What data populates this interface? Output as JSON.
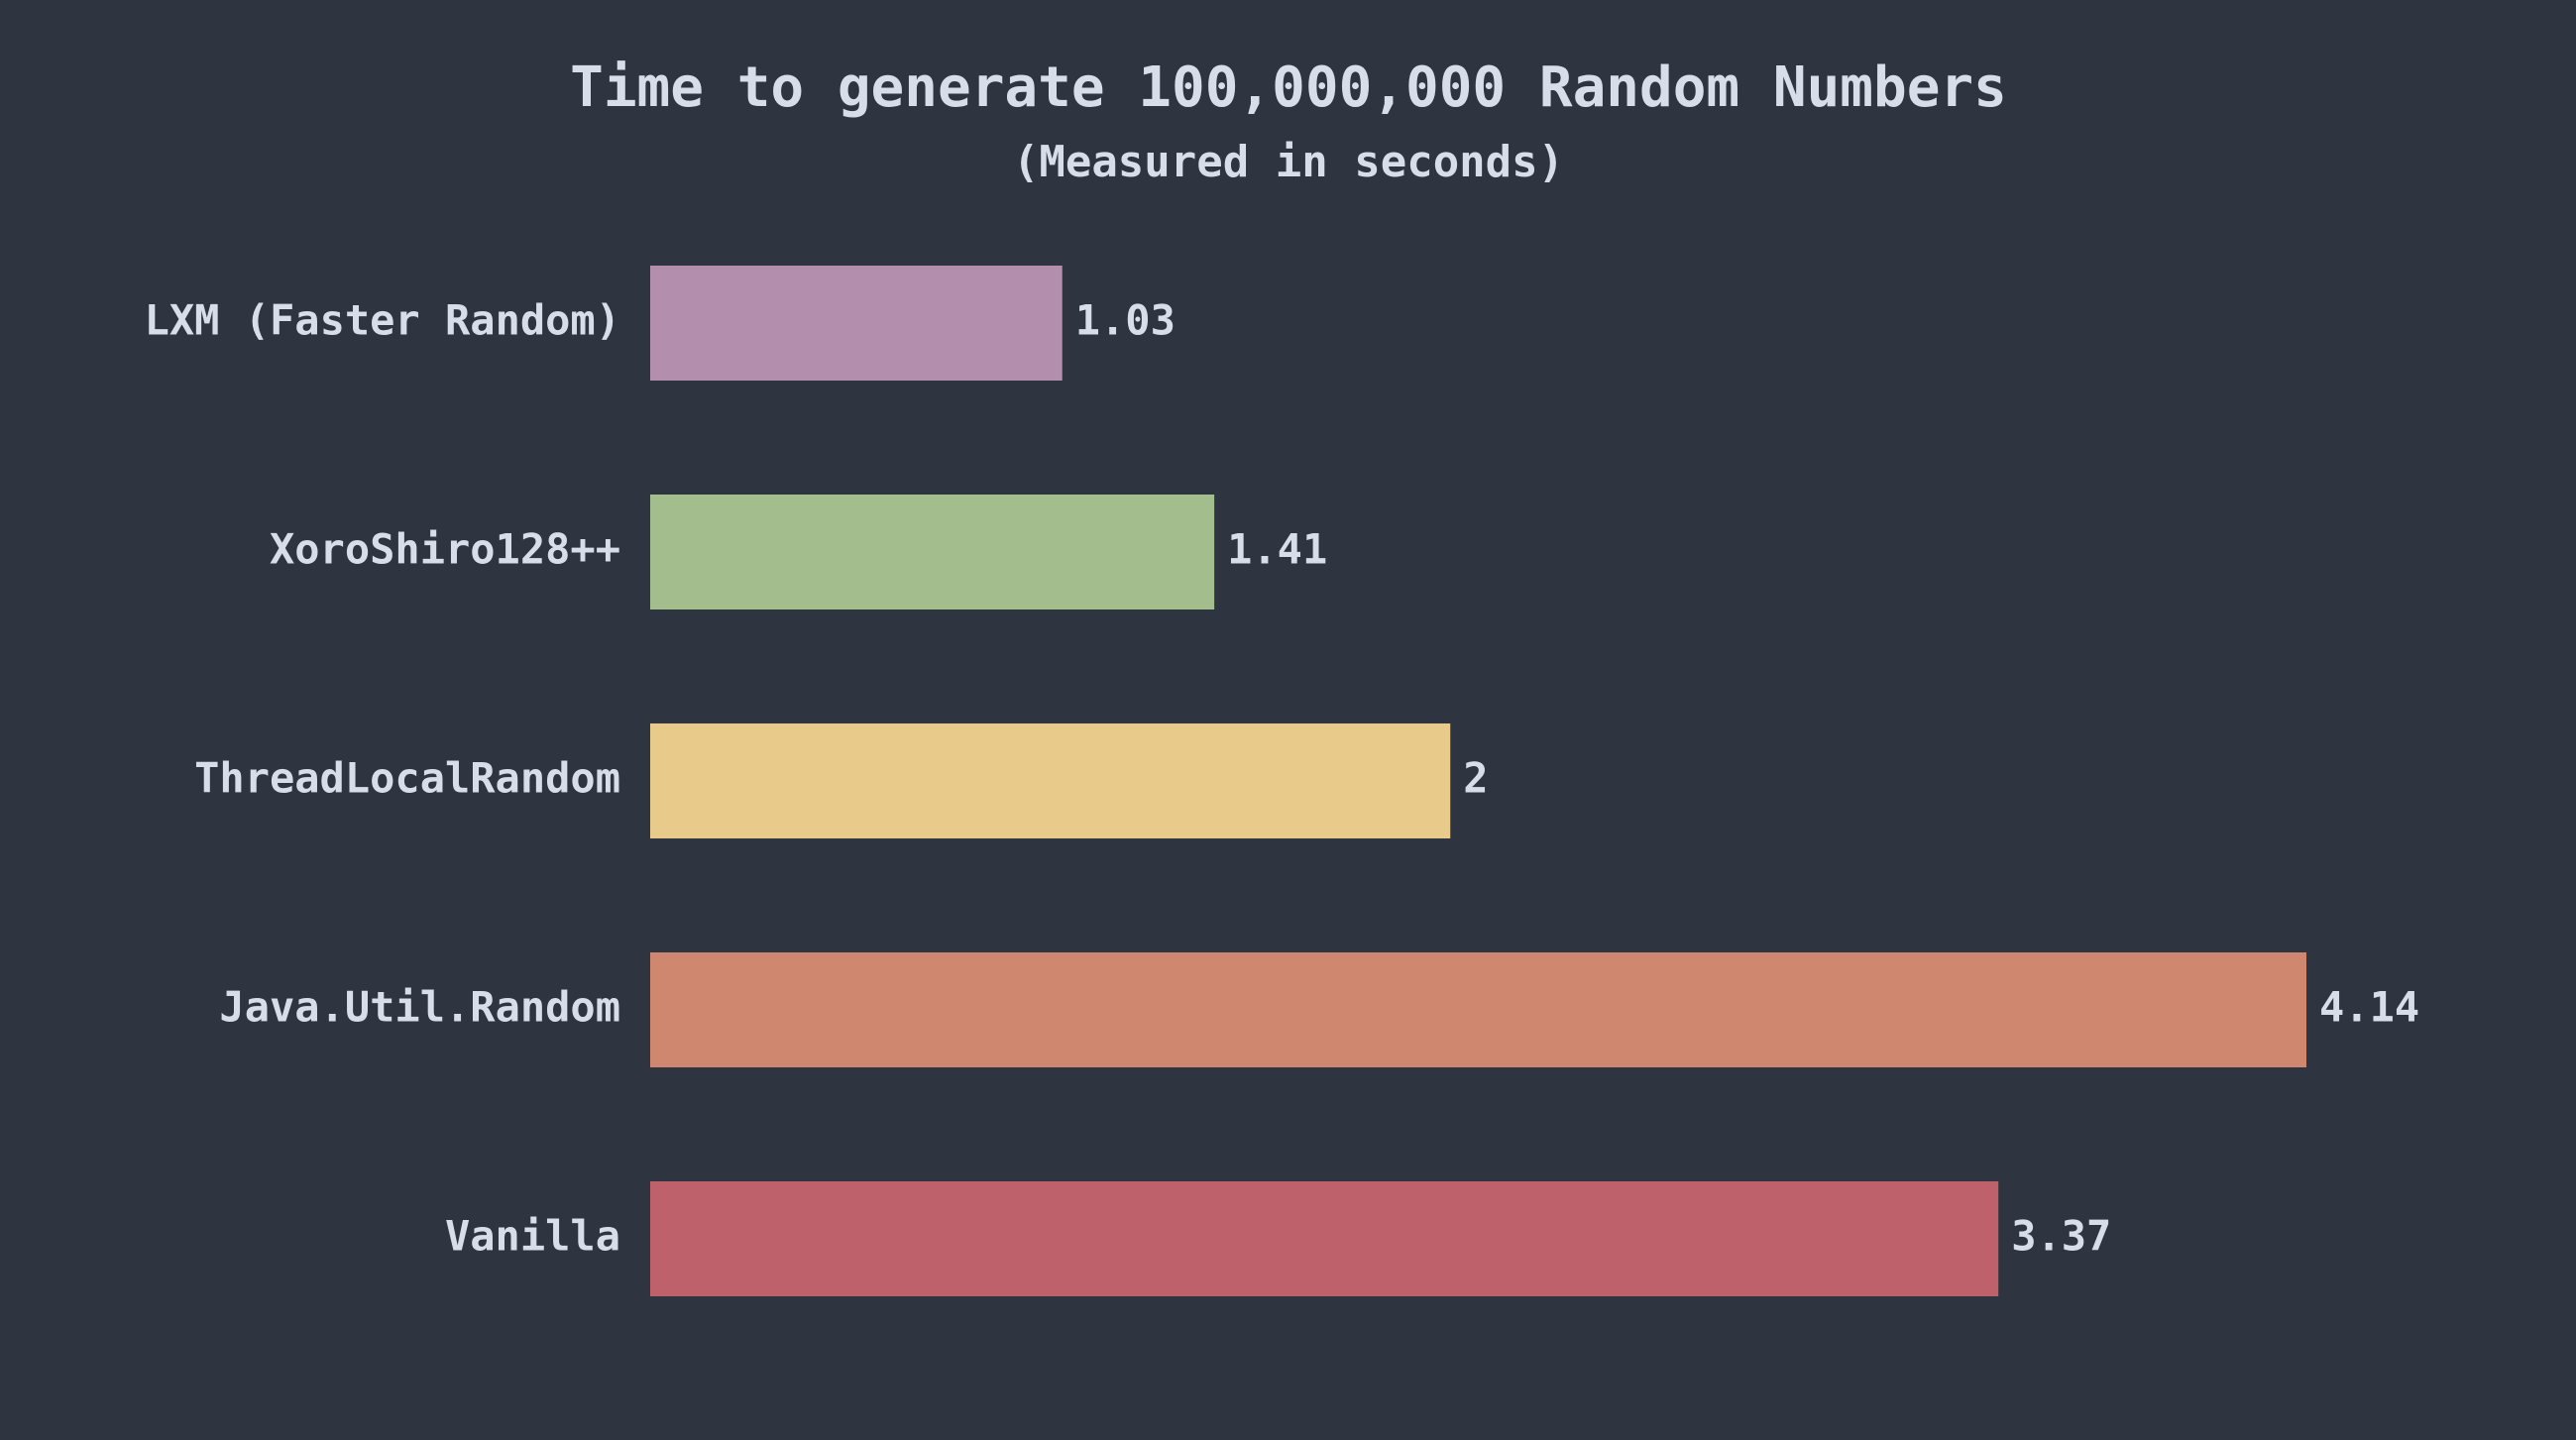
{
  "chart_data": {
    "type": "bar",
    "orientation": "horizontal",
    "title": "Time to generate 100,000,000 Random Numbers",
    "subtitle": "(Measured in seconds)",
    "categories": [
      "LXM (Faster Random)",
      "XoroShiro128++",
      "ThreadLocalRandom",
      "Java.Util.Random",
      "Vanilla"
    ],
    "values": [
      1.03,
      1.41,
      2,
      4.14,
      3.37
    ],
    "colors": [
      "#b48ead",
      "#a3be8c",
      "#e8cb8b",
      "#d08770",
      "#bf616a"
    ]
  }
}
